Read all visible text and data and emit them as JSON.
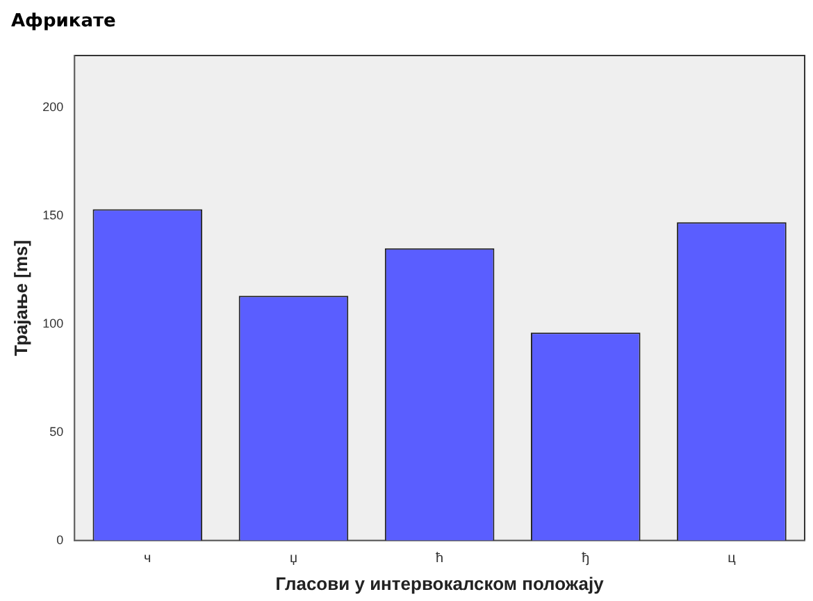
{
  "chart_data": {
    "type": "bar",
    "title": "Африкате",
    "xlabel": "Гласови у интервокалском положају",
    "ylabel": "Трајање [ms]",
    "categories": [
      "ч",
      "џ",
      "ћ",
      "ђ",
      "ц"
    ],
    "values": [
      153,
      113,
      135,
      96,
      147
    ],
    "color": "#5a5eff",
    "ylim": [
      0,
      224
    ],
    "yticks": [
      0,
      50,
      100,
      150,
      200
    ],
    "grid": false,
    "legend": false
  }
}
